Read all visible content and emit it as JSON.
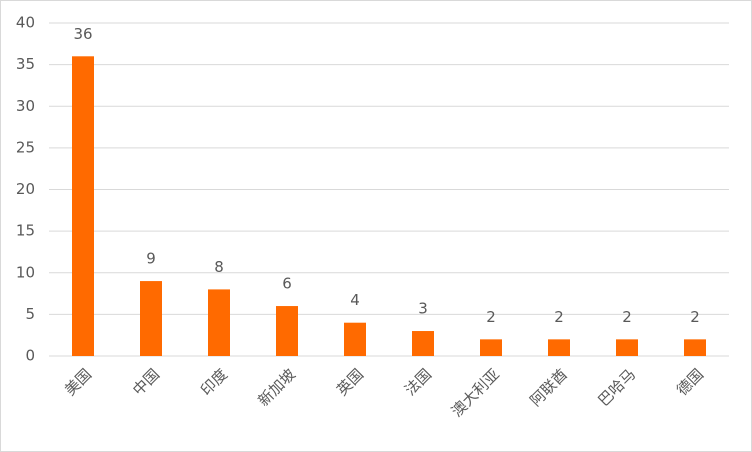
{
  "chart_data": {
    "type": "bar",
    "categories": [
      "美国",
      "中国",
      "印度",
      "新加坡",
      "英国",
      "法国",
      "澳大利亚",
      "阿联酋",
      "巴哈马",
      "德国"
    ],
    "values": [
      36,
      9,
      8,
      6,
      4,
      3,
      2,
      2,
      2,
      2
    ],
    "color": "#ff6a00",
    "ylim": [
      0,
      40
    ],
    "yticks": [
      0,
      5,
      10,
      15,
      20,
      25,
      30,
      35,
      40
    ],
    "grid": true
  }
}
